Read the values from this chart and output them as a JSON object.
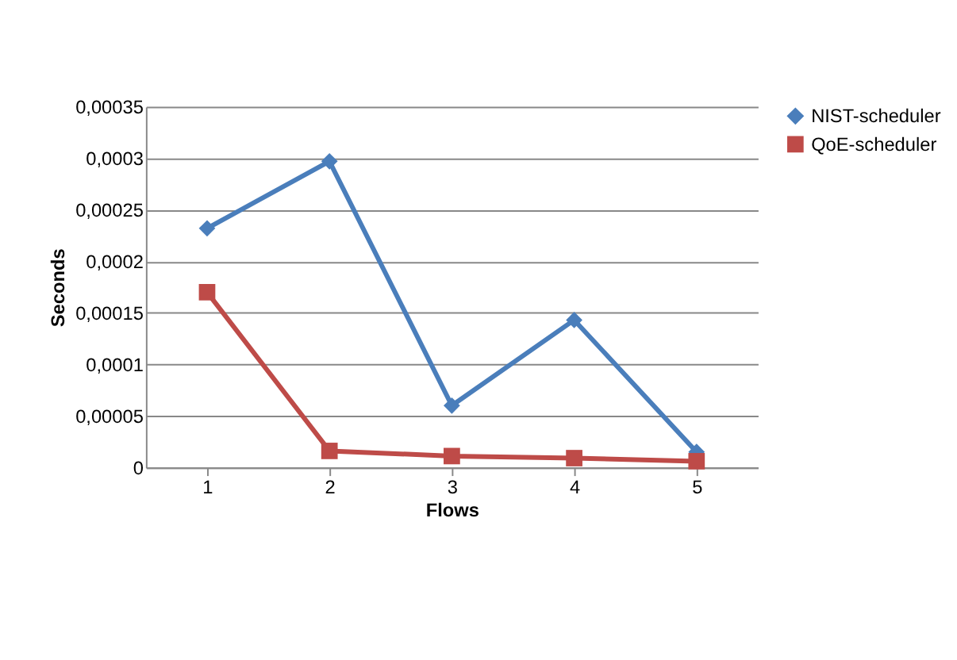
{
  "chart_data": {
    "type": "line",
    "xlabel": "Flows",
    "ylabel": "Seconds",
    "categories": [
      "1",
      "2",
      "3",
      "4",
      "5"
    ],
    "series": [
      {
        "name": "NIST-scheduler",
        "color": "#4a7ebb",
        "marker": "diamond",
        "values": [
          0.000232,
          0.000297,
          6e-05,
          0.000143,
          1.5e-05
        ]
      },
      {
        "name": "QoE-scheduler",
        "color": "#be4b48",
        "marker": "square",
        "values": [
          0.00017,
          1.6e-05,
          1.1e-05,
          9e-06,
          6e-06
        ]
      }
    ],
    "ylim": [
      0,
      0.00035
    ],
    "yticks": [
      {
        "value": 0,
        "label": "0"
      },
      {
        "value": 5e-05,
        "label": "0,00005"
      },
      {
        "value": 0.0001,
        "label": "0,0001"
      },
      {
        "value": 0.00015,
        "label": "0,00015"
      },
      {
        "value": 0.0002,
        "label": "0,0002"
      },
      {
        "value": 0.00025,
        "label": "0,00025"
      },
      {
        "value": 0.0003,
        "label": "0,0003"
      },
      {
        "value": 0.00035,
        "label": "0,00035"
      }
    ],
    "grid": "y",
    "legend": "right",
    "line_style": "solid"
  }
}
